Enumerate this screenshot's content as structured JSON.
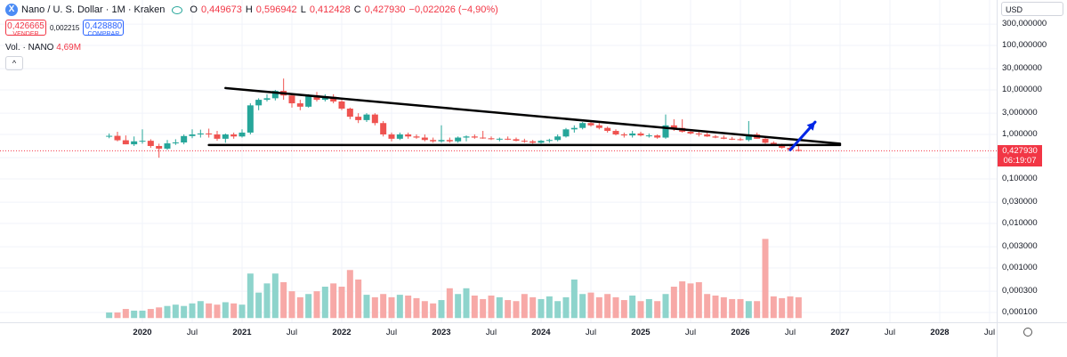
{
  "legend": {
    "title": "Nano / U. S. Dollar · 1M · Kraken",
    "open_label": "O",
    "open": "0,449673",
    "high_label": "H",
    "high": "0,596942",
    "low_label": "L",
    "low": "0,412428",
    "close_label": "C",
    "close": "0,427930",
    "change": "−0,022026 (−4,90%)",
    "icon": "xno-coin-icon"
  },
  "trade": {
    "sell_price": "0,426665",
    "sell_label": "VENDER",
    "spread": "0,002215",
    "buy_price": "0,428880",
    "buy_label": "COMPRAR"
  },
  "volume_legend": {
    "label": "Vol. · NANO",
    "value": "4,69M"
  },
  "currency": "USD",
  "last_price": {
    "price": "0,427930",
    "countdown": "06:19:07"
  },
  "colors": {
    "up": "#26a69a",
    "down": "#ef5350",
    "vol_up": "#8ed4cc",
    "vol_down": "#f7a9a7",
    "arrow": "#0026e6",
    "grid": "#f0f3fa"
  },
  "chart_data": {
    "type": "candlestick",
    "interval": "1M",
    "y_scale": "log",
    "ylim": [
      7.5e-05,
      500
    ],
    "y_ticks": [
      "300,000000",
      "100,000000",
      "30,000000",
      "10,000000",
      "3,000000",
      "1,000000",
      "0,300000",
      "0,100000",
      "0,030000",
      "0,010000",
      "0,003000",
      "0,001000",
      "0,000300",
      "0,000100"
    ],
    "x_ticks": [
      "2020",
      "Jul",
      "2021",
      "Jul",
      "2022",
      "Jul",
      "2023",
      "Jul",
      "2024",
      "Jul",
      "2025",
      "Jul",
      "2026",
      "Jul",
      "2027",
      "Jul",
      "2028",
      "Jul"
    ],
    "start_month": "2019-09",
    "candles": [
      [
        0.9,
        1.05,
        0.82,
        0.93
      ],
      [
        0.93,
        1.15,
        0.7,
        0.74
      ],
      [
        0.74,
        0.95,
        0.6,
        0.6
      ],
      [
        0.6,
        0.9,
        0.55,
        0.7
      ],
      [
        0.7,
        1.3,
        0.62,
        0.72
      ],
      [
        0.72,
        0.78,
        0.5,
        0.55
      ],
      [
        0.55,
        0.62,
        0.3,
        0.48
      ],
      [
        0.48,
        0.75,
        0.45,
        0.63
      ],
      [
        0.63,
        0.78,
        0.58,
        0.66
      ],
      [
        0.66,
        1.0,
        0.6,
        0.92
      ],
      [
        0.92,
        1.3,
        0.82,
        1.0
      ],
      [
        1.0,
        1.28,
        0.85,
        1.05
      ],
      [
        1.05,
        1.35,
        0.85,
        1.0
      ],
      [
        1.0,
        1.2,
        0.72,
        0.8
      ],
      [
        0.8,
        1.05,
        0.65,
        1.0
      ],
      [
        1.0,
        1.1,
        0.8,
        0.9
      ],
      [
        0.9,
        1.3,
        0.85,
        1.1
      ],
      [
        1.1,
        5.0,
        1.0,
        4.5
      ],
      [
        4.5,
        6.5,
        3.5,
        6.0
      ],
      [
        6.0,
        8.0,
        5.5,
        6.5
      ],
      [
        6.5,
        10.0,
        5.8,
        9.5
      ],
      [
        9.5,
        18.0,
        6.0,
        7.5
      ],
      [
        7.5,
        8.0,
        4.0,
        5.0
      ],
      [
        5.0,
        6.0,
        3.5,
        4.2
      ],
      [
        4.2,
        8.0,
        4.0,
        7.5
      ],
      [
        7.5,
        9.0,
        5.5,
        6.0
      ],
      [
        6.0,
        8.0,
        5.5,
        7.0
      ],
      [
        7.0,
        8.0,
        5.0,
        5.5
      ],
      [
        5.5,
        6.0,
        3.5,
        3.8
      ],
      [
        3.8,
        4.0,
        2.2,
        2.5
      ],
      [
        2.5,
        3.0,
        1.8,
        2.1
      ],
      [
        2.1,
        3.0,
        1.9,
        2.8
      ],
      [
        2.8,
        3.0,
        1.6,
        1.8
      ],
      [
        1.8,
        2.0,
        0.9,
        1.0
      ],
      [
        1.0,
        1.1,
        0.7,
        0.8
      ],
      [
        0.8,
        1.1,
        0.75,
        1.0
      ],
      [
        1.0,
        1.1,
        0.8,
        0.9
      ],
      [
        0.9,
        1.0,
        0.8,
        0.85
      ],
      [
        0.85,
        1.0,
        0.7,
        0.75
      ],
      [
        0.75,
        0.85,
        0.65,
        0.7
      ],
      [
        0.7,
        1.6,
        0.65,
        0.75
      ],
      [
        0.75,
        0.85,
        0.65,
        0.7
      ],
      [
        0.7,
        0.9,
        0.65,
        0.85
      ],
      [
        0.85,
        0.95,
        0.7,
        0.9
      ],
      [
        0.9,
        1.0,
        0.8,
        0.85
      ],
      [
        0.85,
        1.2,
        0.8,
        0.82
      ],
      [
        0.82,
        0.9,
        0.75,
        0.78
      ],
      [
        0.78,
        0.85,
        0.7,
        0.8
      ],
      [
        0.8,
        0.9,
        0.75,
        0.78
      ],
      [
        0.78,
        0.85,
        0.7,
        0.72
      ],
      [
        0.72,
        0.8,
        0.65,
        0.7
      ],
      [
        0.7,
        0.75,
        0.62,
        0.65
      ],
      [
        0.65,
        0.75,
        0.62,
        0.72
      ],
      [
        0.72,
        0.8,
        0.65,
        0.75
      ],
      [
        0.75,
        1.0,
        0.7,
        0.9
      ],
      [
        0.9,
        1.4,
        0.85,
        1.3
      ],
      [
        1.3,
        1.6,
        1.1,
        1.4
      ],
      [
        1.4,
        1.9,
        1.3,
        1.8
      ],
      [
        1.8,
        2.0,
        1.5,
        1.6
      ],
      [
        1.6,
        1.8,
        1.3,
        1.4
      ],
      [
        1.4,
        1.5,
        1.1,
        1.2
      ],
      [
        1.2,
        1.3,
        0.95,
        1.0
      ],
      [
        1.0,
        1.1,
        0.85,
        0.95
      ],
      [
        0.95,
        1.2,
        0.85,
        1.05
      ],
      [
        1.05,
        1.15,
        0.9,
        0.95
      ],
      [
        0.95,
        1.05,
        0.85,
        0.95
      ],
      [
        0.95,
        1.0,
        0.8,
        0.85
      ],
      [
        0.85,
        2.8,
        0.8,
        1.6
      ],
      [
        1.6,
        2.2,
        1.2,
        1.4
      ],
      [
        1.4,
        2.2,
        1.1,
        1.15
      ],
      [
        1.15,
        1.3,
        1.0,
        1.05
      ],
      [
        1.05,
        1.15,
        0.9,
        1.0
      ],
      [
        1.0,
        1.1,
        0.88,
        0.9
      ],
      [
        0.9,
        0.98,
        0.82,
        0.85
      ],
      [
        0.85,
        0.95,
        0.78,
        0.8
      ],
      [
        0.8,
        0.88,
        0.75,
        0.78
      ],
      [
        0.78,
        0.85,
        0.72,
        0.75
      ],
      [
        0.75,
        2.0,
        0.7,
        1.0
      ],
      [
        1.0,
        1.1,
        0.8,
        0.8
      ],
      [
        0.8,
        0.85,
        0.62,
        0.65
      ],
      [
        0.65,
        0.7,
        0.55,
        0.58
      ],
      [
        0.58,
        0.62,
        0.48,
        0.5
      ],
      [
        0.5,
        0.55,
        0.44,
        0.45
      ],
      [
        0.449673,
        0.596942,
        0.412428,
        0.42793
      ]
    ],
    "volume": [
      0.0001,
      0.0001,
      0.00012,
      0.00011,
      0.00011,
      0.00012,
      0.00013,
      0.00014,
      0.00015,
      0.00014,
      0.00016,
      0.00018,
      0.00016,
      0.00015,
      0.00017,
      0.00016,
      0.00015,
      0.00075,
      0.00028,
      0.00045,
      0.00075,
      0.00048,
      0.0003,
      0.00022,
      0.00026,
      0.0003,
      0.00038,
      0.00045,
      0.00038,
      0.0009,
      0.00055,
      0.00025,
      0.00022,
      0.00026,
      0.00022,
      0.00025,
      0.00024,
      0.00021,
      0.00018,
      0.00016,
      0.00019,
      0.00035,
      0.00026,
      0.00035,
      0.00024,
      0.0002,
      0.00024,
      0.00022,
      0.00019,
      0.00018,
      0.00026,
      0.00022,
      0.0002,
      0.00023,
      0.00018,
      0.00022,
      0.00055,
      0.00026,
      0.00028,
      0.00022,
      0.00026,
      0.00022,
      0.00019,
      0.00024,
      0.00018,
      0.0002,
      0.00018,
      0.00026,
      0.00038,
      0.0005,
      0.00045,
      0.00048,
      0.00026,
      0.00024,
      0.00022,
      0.0002,
      0.0002,
      0.00018,
      0.00018,
      0.0045,
      0.00023,
      0.00021,
      0.00023,
      0.00022
    ],
    "trendlines": [
      {
        "from": [
          "2020-09",
          0.58
        ],
        "to": [
          "2027-01",
          0.58
        ],
        "color": "#000000"
      },
      {
        "from": [
          "2020-11",
          11.0
        ],
        "to": [
          "2027-01",
          0.62
        ],
        "color": "#000000"
      },
      {
        "from": [
          "2026-07",
          0.45
        ],
        "to": [
          "2026-10",
          1.9
        ],
        "color": "#0026e6",
        "arrow": true
      }
    ]
  }
}
